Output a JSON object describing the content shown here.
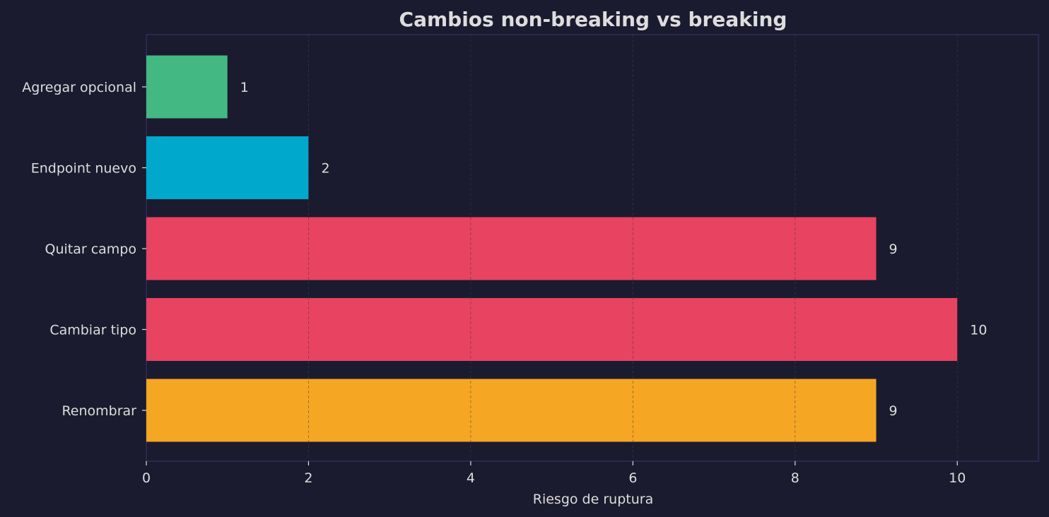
{
  "chart_data": {
    "type": "bar",
    "orientation": "horizontal",
    "title": "Cambios non-breaking vs breaking",
    "xlabel": "Riesgo de ruptura",
    "ylabel": "",
    "xlim": [
      0,
      11
    ],
    "xticks": [
      0,
      2,
      4,
      6,
      8,
      10
    ],
    "grid": "vertical dashed",
    "categories": [
      "Agregar opcional",
      "Endpoint nuevo",
      "Quitar campo",
      "Cambiar tipo",
      "Renombrar"
    ],
    "values": [
      1,
      2,
      9,
      10,
      9
    ],
    "value_labels": [
      "1",
      "2",
      "9",
      "10",
      "9"
    ],
    "colors": [
      "#43b883",
      "#00a8cc",
      "#e84361",
      "#e84361",
      "#f5a623"
    ]
  },
  "colors": {
    "background": "#1b1b2f",
    "axes_edge": "#2e2e5a",
    "text": "#dddddd",
    "grid": "#555555"
  }
}
